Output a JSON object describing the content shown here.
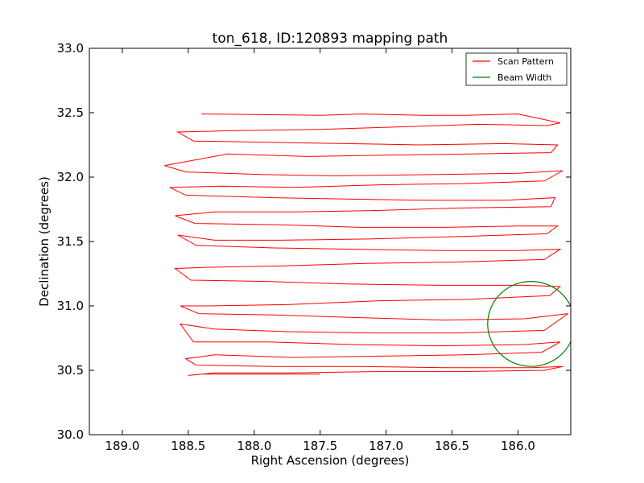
{
  "chart_data": {
    "type": "line",
    "title": "ton_618, ID:120893 mapping path",
    "xlabel": "Right Ascension (degrees)",
    "ylabel": "Declination (degrees)",
    "xlim": [
      189.25,
      185.6
    ],
    "ylim": [
      30.0,
      33.0
    ],
    "x_inverted": true,
    "xticks": [
      "189.0",
      "188.5",
      "188.0",
      "187.5",
      "187.0",
      "186.5",
      "186.0"
    ],
    "yticks": [
      "30.0",
      "30.5",
      "31.0",
      "31.5",
      "32.0",
      "32.5",
      "33.0"
    ],
    "grid": false,
    "legend": {
      "position": "top-right",
      "entries": [
        "Scan Pattern",
        "Beam Width"
      ]
    },
    "series": [
      {
        "name": "Scan Pattern",
        "color": "#ff0000",
        "x": [
          188.4,
          187.5,
          187.18,
          186.72,
          186.4,
          186.0,
          185.68,
          185.78,
          186.3,
          186.9,
          187.5,
          188.18,
          188.58,
          188.46,
          187.9,
          187.3,
          186.75,
          186.1,
          185.7,
          185.75,
          186.35,
          187.0,
          187.6,
          188.2,
          188.68,
          188.52,
          187.95,
          187.4,
          186.6,
          186.0,
          185.66,
          185.8,
          186.4,
          187.05,
          187.7,
          188.25,
          188.64,
          188.52,
          187.85,
          187.3,
          186.7,
          186.1,
          185.72,
          185.75,
          186.45,
          187.1,
          187.7,
          188.3,
          188.6,
          188.45,
          187.8,
          187.2,
          186.55,
          186.0,
          185.7,
          185.78,
          186.4,
          187.1,
          187.8,
          188.3,
          188.58,
          188.44,
          187.85,
          187.25,
          186.6,
          186.0,
          185.68,
          185.8,
          186.5,
          187.15,
          187.8,
          188.35,
          188.6,
          188.48,
          187.9,
          187.3,
          186.6,
          185.95,
          185.68,
          185.76,
          186.4,
          187.05,
          187.75,
          188.35,
          188.56,
          188.42,
          187.85,
          187.25,
          186.55,
          185.95,
          185.62,
          185.8,
          186.45,
          187.1,
          187.75,
          188.3,
          188.56,
          188.46,
          187.9,
          187.25,
          186.6,
          185.95,
          185.68,
          185.82,
          186.4,
          187.05,
          187.7,
          188.3,
          188.52,
          188.44,
          187.85,
          187.2,
          186.55,
          185.9,
          185.66,
          185.8,
          186.45,
          187.1,
          187.75,
          188.3,
          188.5,
          188.4,
          187.5
        ],
        "y": [
          32.49,
          32.48,
          32.49,
          32.48,
          32.48,
          32.49,
          32.42,
          32.4,
          32.41,
          32.39,
          32.37,
          32.36,
          32.35,
          32.28,
          32.27,
          32.26,
          32.25,
          32.26,
          32.25,
          32.19,
          32.18,
          32.17,
          32.16,
          32.18,
          32.09,
          32.04,
          32.02,
          32.01,
          32.02,
          32.03,
          32.05,
          31.97,
          31.95,
          31.94,
          31.92,
          31.93,
          31.92,
          31.86,
          31.84,
          31.83,
          31.82,
          31.82,
          31.84,
          31.77,
          31.76,
          31.74,
          31.73,
          31.73,
          31.7,
          31.64,
          31.63,
          31.61,
          31.61,
          31.62,
          31.62,
          31.56,
          31.54,
          31.52,
          31.51,
          31.51,
          31.55,
          31.47,
          31.45,
          31.44,
          31.43,
          31.43,
          31.44,
          31.36,
          31.34,
          31.33,
          31.31,
          31.3,
          31.29,
          31.2,
          31.19,
          31.17,
          31.16,
          31.16,
          31.15,
          31.08,
          31.05,
          31.04,
          31.01,
          31.0,
          31.0,
          30.94,
          30.93,
          30.91,
          30.89,
          30.9,
          30.94,
          30.81,
          30.79,
          30.79,
          30.8,
          30.82,
          30.86,
          30.72,
          30.72,
          30.7,
          30.69,
          30.7,
          30.72,
          30.64,
          30.62,
          30.61,
          30.6,
          30.62,
          30.59,
          30.54,
          30.53,
          30.53,
          30.52,
          30.52,
          30.53,
          30.5,
          30.49,
          30.49,
          30.48,
          30.48,
          30.46,
          30.47,
          30.47
        ]
      },
      {
        "name": "Beam Width",
        "color": "#008000",
        "shape": "circle",
        "center": [
          185.9,
          30.86
        ],
        "radius_deg": 0.33
      }
    ]
  }
}
